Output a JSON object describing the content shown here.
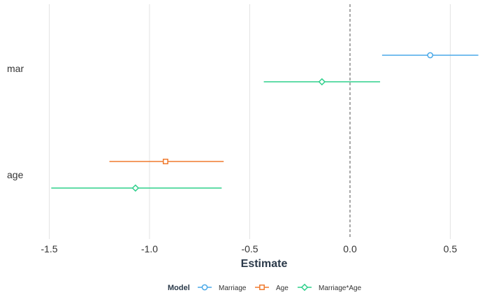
{
  "chart_data": {
    "type": "scatter",
    "subtype": "coefficient-plot",
    "xlabel": "Estimate",
    "xlim": [
      -1.55,
      0.68
    ],
    "x_ticks": [
      -1.5,
      -1.0,
      -0.5,
      0.0,
      0.5
    ],
    "x_tick_labels": [
      "-1.5",
      "-1.0",
      "-0.5",
      "0.0",
      "0.5"
    ],
    "reference_line": 0.0,
    "categories": [
      "mar",
      "age"
    ],
    "grid": "vertical major",
    "legend": {
      "title": "Model",
      "position": "bottom",
      "entries": [
        "Marriage",
        "Age",
        "Marriage*Age"
      ]
    },
    "series": [
      {
        "name": "Marriage",
        "color": "#4aa9e8",
        "marker": "circle",
        "points": [
          {
            "term": "mar",
            "estimate": 0.4,
            "low": 0.16,
            "high": 0.64
          }
        ]
      },
      {
        "name": "Age",
        "color": "#f07a2e",
        "marker": "square",
        "points": [
          {
            "term": "age",
            "estimate": -0.92,
            "low": -1.2,
            "high": -0.63
          }
        ]
      },
      {
        "name": "Marriage*Age",
        "color": "#2fd08c",
        "marker": "diamond",
        "points": [
          {
            "term": "mar",
            "estimate": -0.14,
            "low": -0.43,
            "high": 0.15
          },
          {
            "term": "age",
            "estimate": -1.07,
            "low": -1.49,
            "high": -0.64
          }
        ]
      }
    ]
  }
}
